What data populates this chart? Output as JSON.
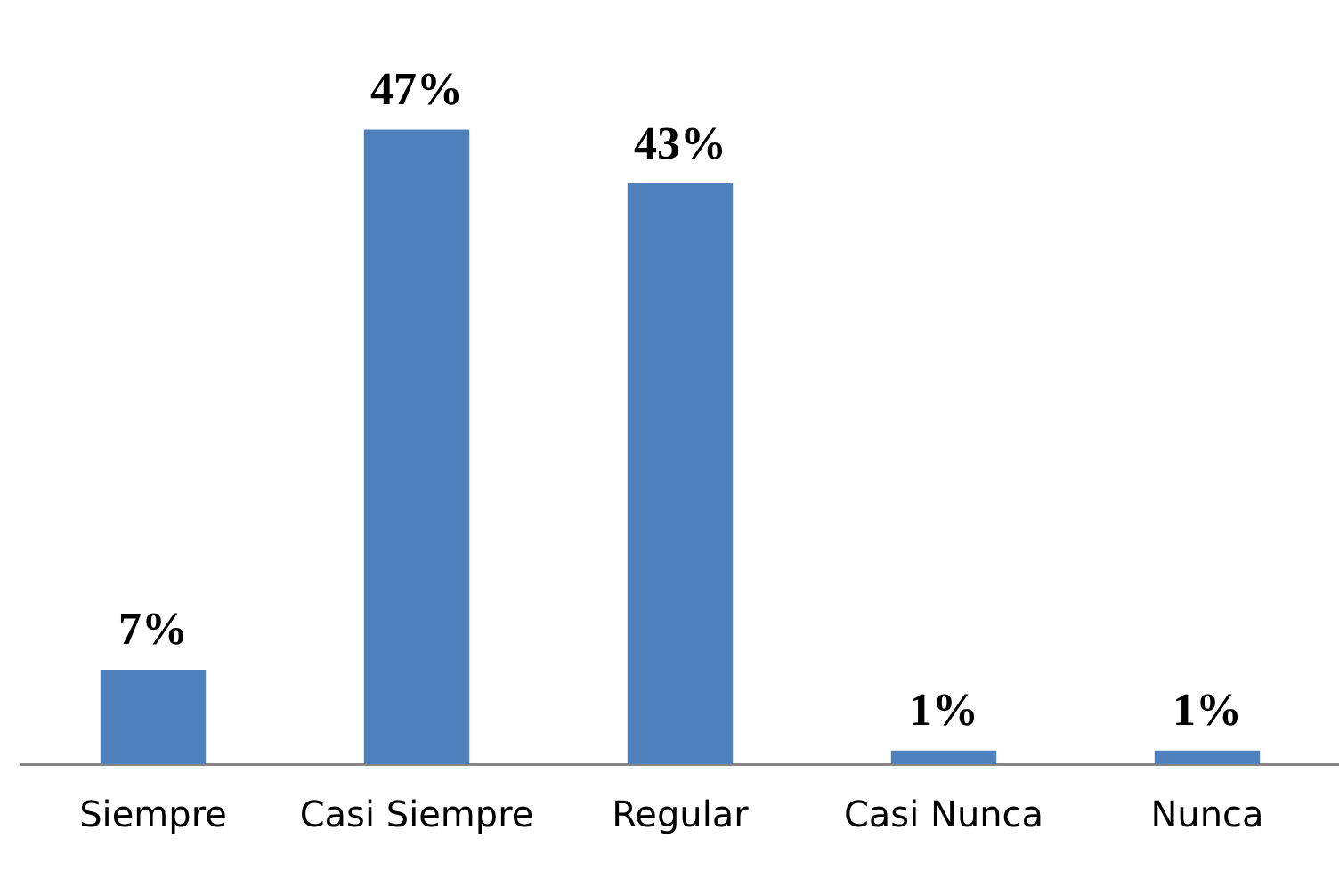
{
  "chart_data": {
    "type": "bar",
    "categories": [
      "Siempre",
      "Casi Siempre",
      "Regular",
      "Casi Nunca",
      "Nunca"
    ],
    "series": [
      {
        "color": "#4f81bd",
        "values": [
          7,
          47,
          43,
          1,
          1
        ],
        "value_labels": [
          "7%",
          "47%",
          "43%",
          "1%",
          "1%"
        ]
      }
    ],
    "grid": false,
    "legend": false
  }
}
